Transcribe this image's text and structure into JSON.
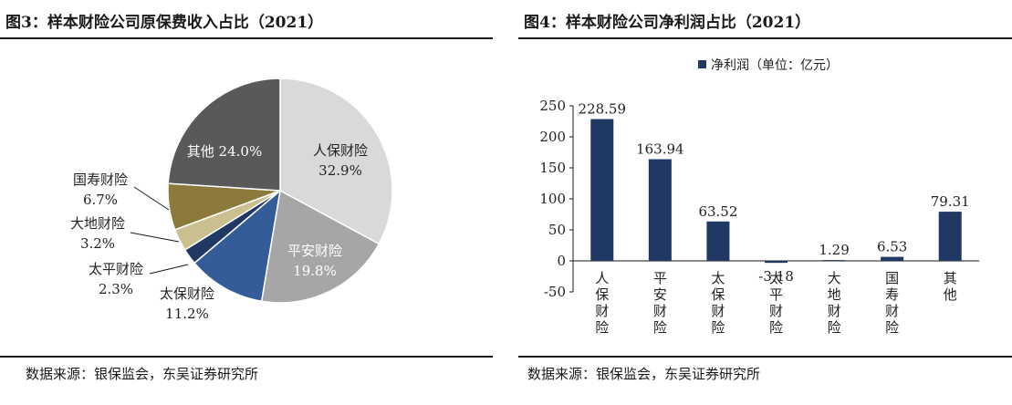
{
  "left": {
    "title": "图3：样本财险公司原保费收入占比（2021）",
    "source": "数据来源：银保监会，东吴证券研究所"
  },
  "right": {
    "title": "图4：样本财险公司净利润占比（2021）",
    "source": "数据来源：银保监会，东吴证券研究所"
  },
  "chart_data": [
    {
      "type": "pie",
      "title": "图3：样本财险公司原保费收入占比（2021）",
      "slices": [
        {
          "name": "人保财险",
          "label": "32.9%",
          "value": 32.9,
          "color": "#d9d9d9"
        },
        {
          "name": "平安财险",
          "label": "19.8%",
          "value": 19.8,
          "color": "#a6a6a6"
        },
        {
          "name": "太保财险",
          "label": "11.2%",
          "value": 11.2,
          "color": "#335c99"
        },
        {
          "name": "太平财险",
          "label": "2.3%",
          "value": 2.3,
          "color": "#1f3864"
        },
        {
          "name": "大地财险",
          "label": "3.2%",
          "value": 3.2,
          "color": "#c9bf8f"
        },
        {
          "name": "国寿财险",
          "label": "6.7%",
          "value": 6.7,
          "color": "#8c7a3c"
        },
        {
          "name": "其他",
          "label": "24.0%",
          "value": 24.0,
          "color": "#595959"
        }
      ]
    },
    {
      "type": "bar",
      "title": "图4：样本财险公司净利润占比（2021）",
      "legend": {
        "label": "净利润（单位：亿元）",
        "position": "top"
      },
      "series_color": "#1f3864",
      "categories": [
        "人保财险",
        "平安财险",
        "太保财险",
        "太平财险",
        "大地财险",
        "国寿财险",
        "其他"
      ],
      "values": [
        228.59,
        163.94,
        63.52,
        -3.18,
        1.29,
        6.53,
        79.31
      ],
      "value_labels": [
        "228.59",
        "163.94",
        "63.52",
        "-3.18",
        "1.29",
        "6.53",
        "79.31"
      ],
      "ylim": [
        -50,
        250
      ],
      "yticks": [
        -50,
        0,
        50,
        100,
        150,
        200,
        250
      ],
      "ytick_labels": [
        "-50",
        "0",
        "50",
        "100",
        "150",
        "200",
        "250"
      ],
      "grid": false
    }
  ]
}
